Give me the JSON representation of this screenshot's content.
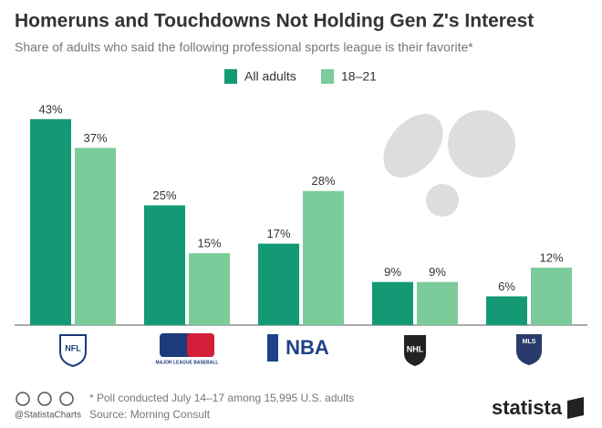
{
  "chart_data": {
    "type": "bar",
    "title": "Homeruns and Touchdowns Not Holding Gen Z's Interest",
    "subtitle": "Share of adults who said the following professional sports league is their favorite*",
    "categories": [
      "NFL",
      "MAJOR LEAGUE BASEBALL",
      "NBA",
      "NHL",
      "MLS"
    ],
    "series": [
      {
        "name": "All adults",
        "color": "#139a74",
        "values": [
          43,
          25,
          17,
          9,
          6
        ],
        "value_labels": [
          "43%",
          "25%",
          "17%",
          "9%",
          "6%"
        ]
      },
      {
        "name": "18–21",
        "color": "#7ccb9b",
        "values": [
          37,
          15,
          28,
          9,
          12
        ],
        "value_labels": [
          "37%",
          "15%",
          "28%",
          "9%",
          "12%"
        ]
      }
    ],
    "legend": "top",
    "footnote": "* Poll conducted July 14–17 among 15,995 U.S. adults",
    "source": "Source: Morning Consult",
    "handle": "@StatistaCharts",
    "brand": "statista"
  }
}
